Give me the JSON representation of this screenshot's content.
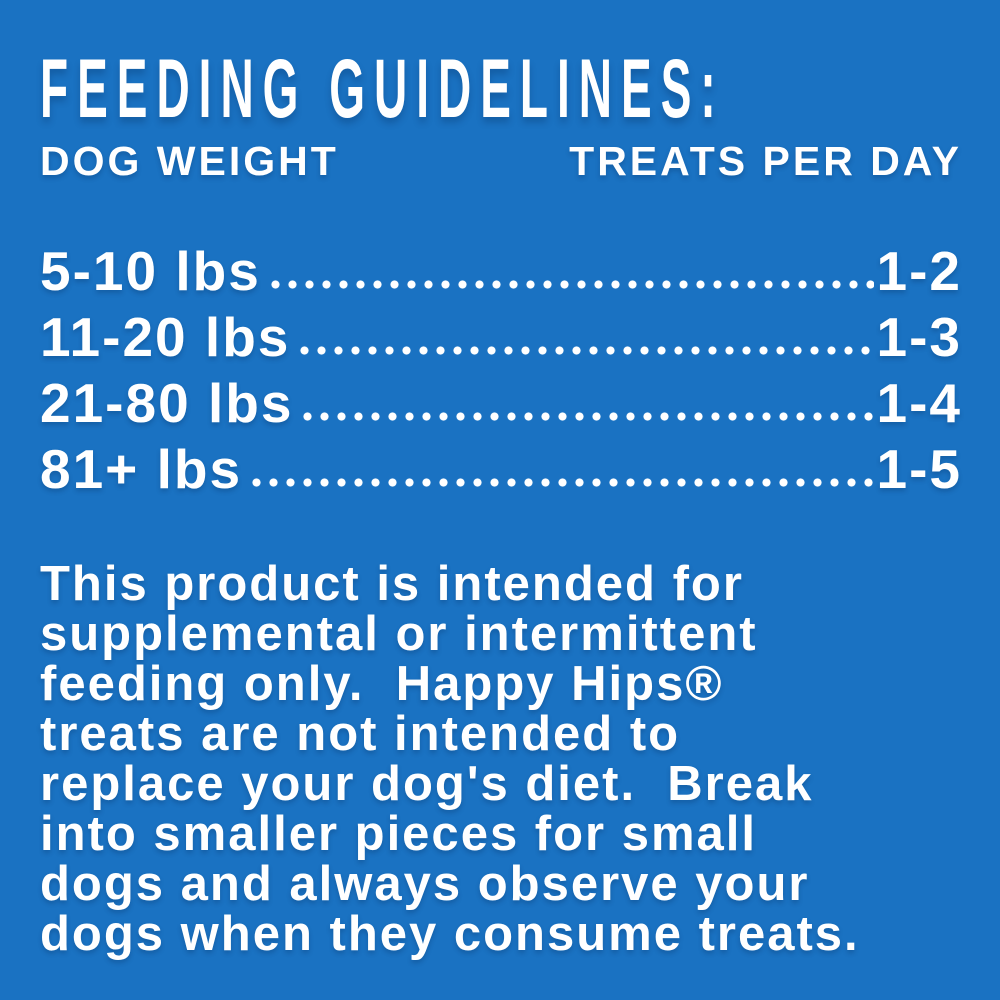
{
  "colors": {
    "background": "#1a72c2",
    "text": "#ffffff"
  },
  "header": {
    "title": "FEEDING GUIDELINES:"
  },
  "table": {
    "columns": {
      "left": "DOG WEIGHT",
      "right": "TREATS PER DAY"
    },
    "rows": [
      {
        "weight": "5-10 lbs",
        "treats_per_day": "1-2"
      },
      {
        "weight": "11-20 lbs",
        "treats_per_day": "1-3"
      },
      {
        "weight": "21-80 lbs",
        "treats_per_day": "1-4"
      },
      {
        "weight": "81+ lbs",
        "treats_per_day": "1-5"
      }
    ]
  },
  "note": {
    "lines": [
      "This product is intended for",
      "supplemental or intermittent",
      "feeding only.  Happy Hips®",
      "treats are not intended to",
      "replace your dog's diet.  Break",
      "into smaller pieces for small",
      "dogs and always observe your",
      "dogs when they consume treats."
    ]
  }
}
